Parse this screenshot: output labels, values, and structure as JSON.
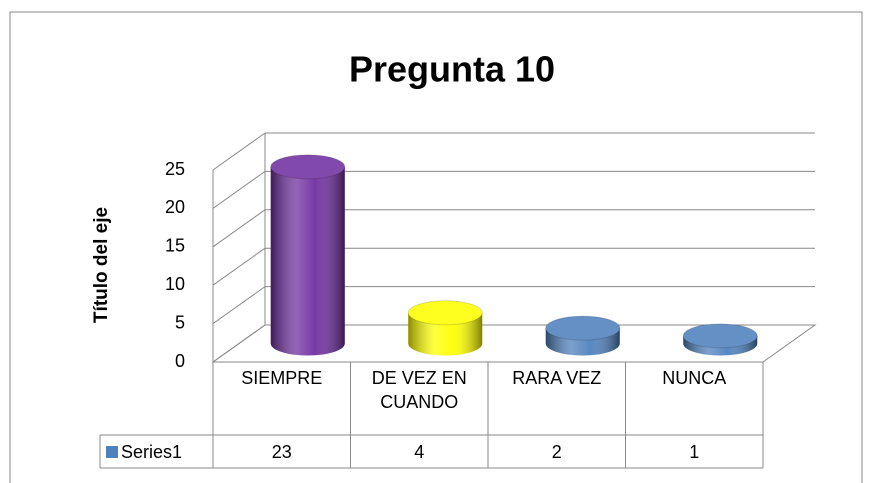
{
  "chart_data": {
    "type": "cylinder3d",
    "title": "Pregunta 10",
    "y_axis_label": "Título del eje",
    "categories": [
      "SIEMPRE",
      "DE VEZ EN CUANDO",
      "RARA VEZ",
      "NUNCA"
    ],
    "series": [
      {
        "name": "Series1",
        "color": "#4f81bd",
        "values": [
          23,
          4,
          2,
          1
        ],
        "point_colors": [
          "#7030a0",
          "#ffff00",
          "#4f81bd",
          "#4f81bd"
        ]
      }
    ],
    "ylim": [
      0,
      25
    ],
    "yticks": [
      0,
      5,
      10,
      15,
      20,
      25
    ],
    "grid": true,
    "data_table": true
  }
}
